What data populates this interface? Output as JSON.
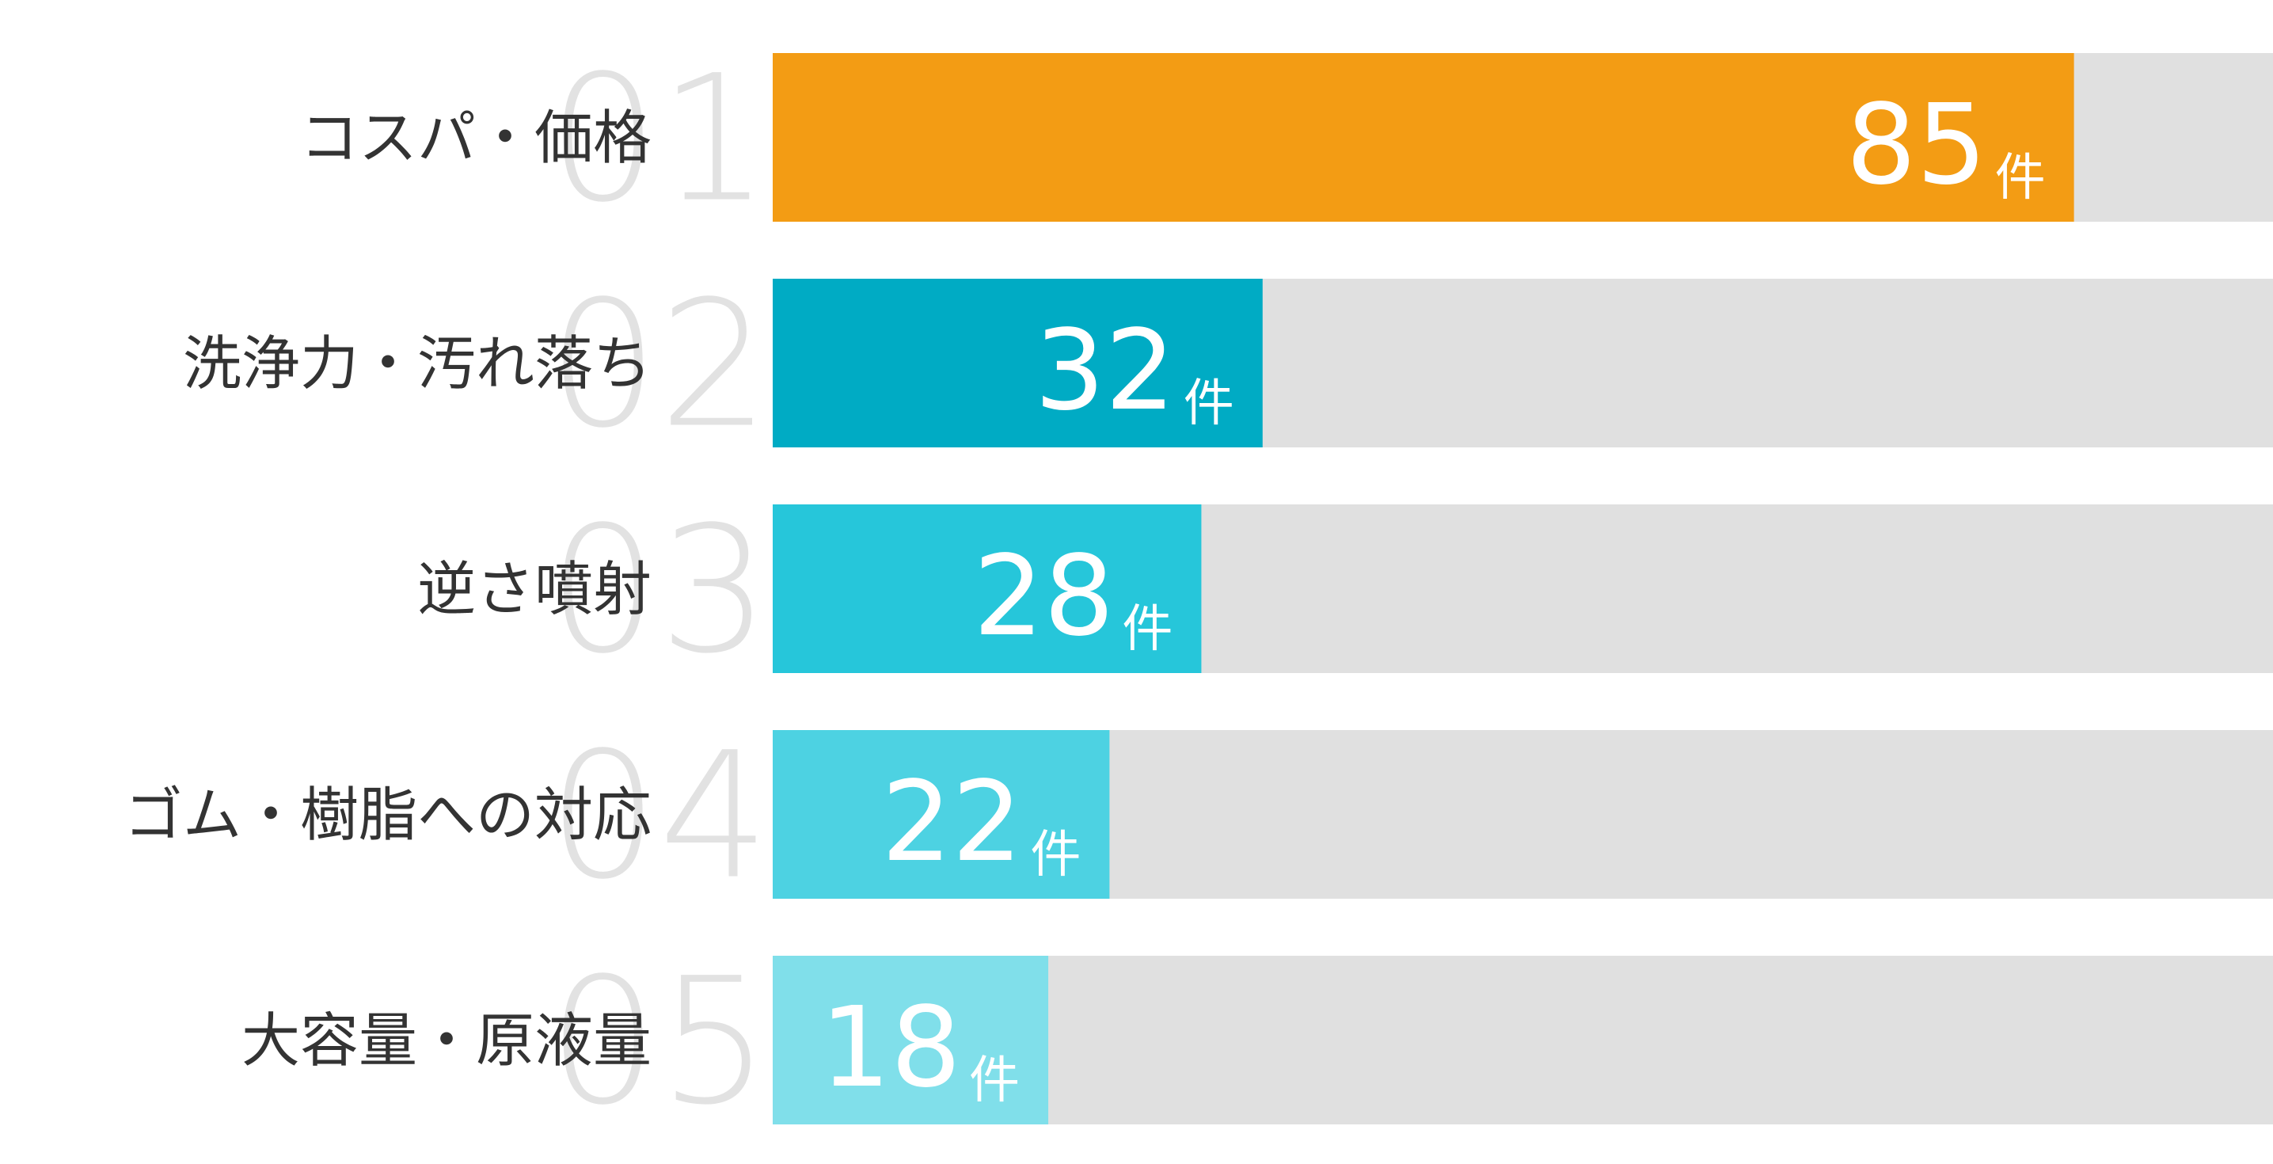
{
  "chart_data": {
    "type": "hbar",
    "categories": [
      "コスパ・価格",
      "洗浄力・汚れ落ち",
      "逆さ噴射",
      "ゴム・樹脂への対応",
      "大容量・原液量"
    ],
    "ranks": [
      "01",
      "02",
      "03",
      "04",
      "05"
    ],
    "values": [
      85,
      32,
      28,
      22,
      18
    ],
    "unit": "件",
    "colors": [
      "#f39c14",
      "#00abc4",
      "#26c6da",
      "#4dd2e2",
      "#80dfea"
    ],
    "track_color": "#e0e0e0",
    "xlim": [
      0,
      98
    ]
  }
}
